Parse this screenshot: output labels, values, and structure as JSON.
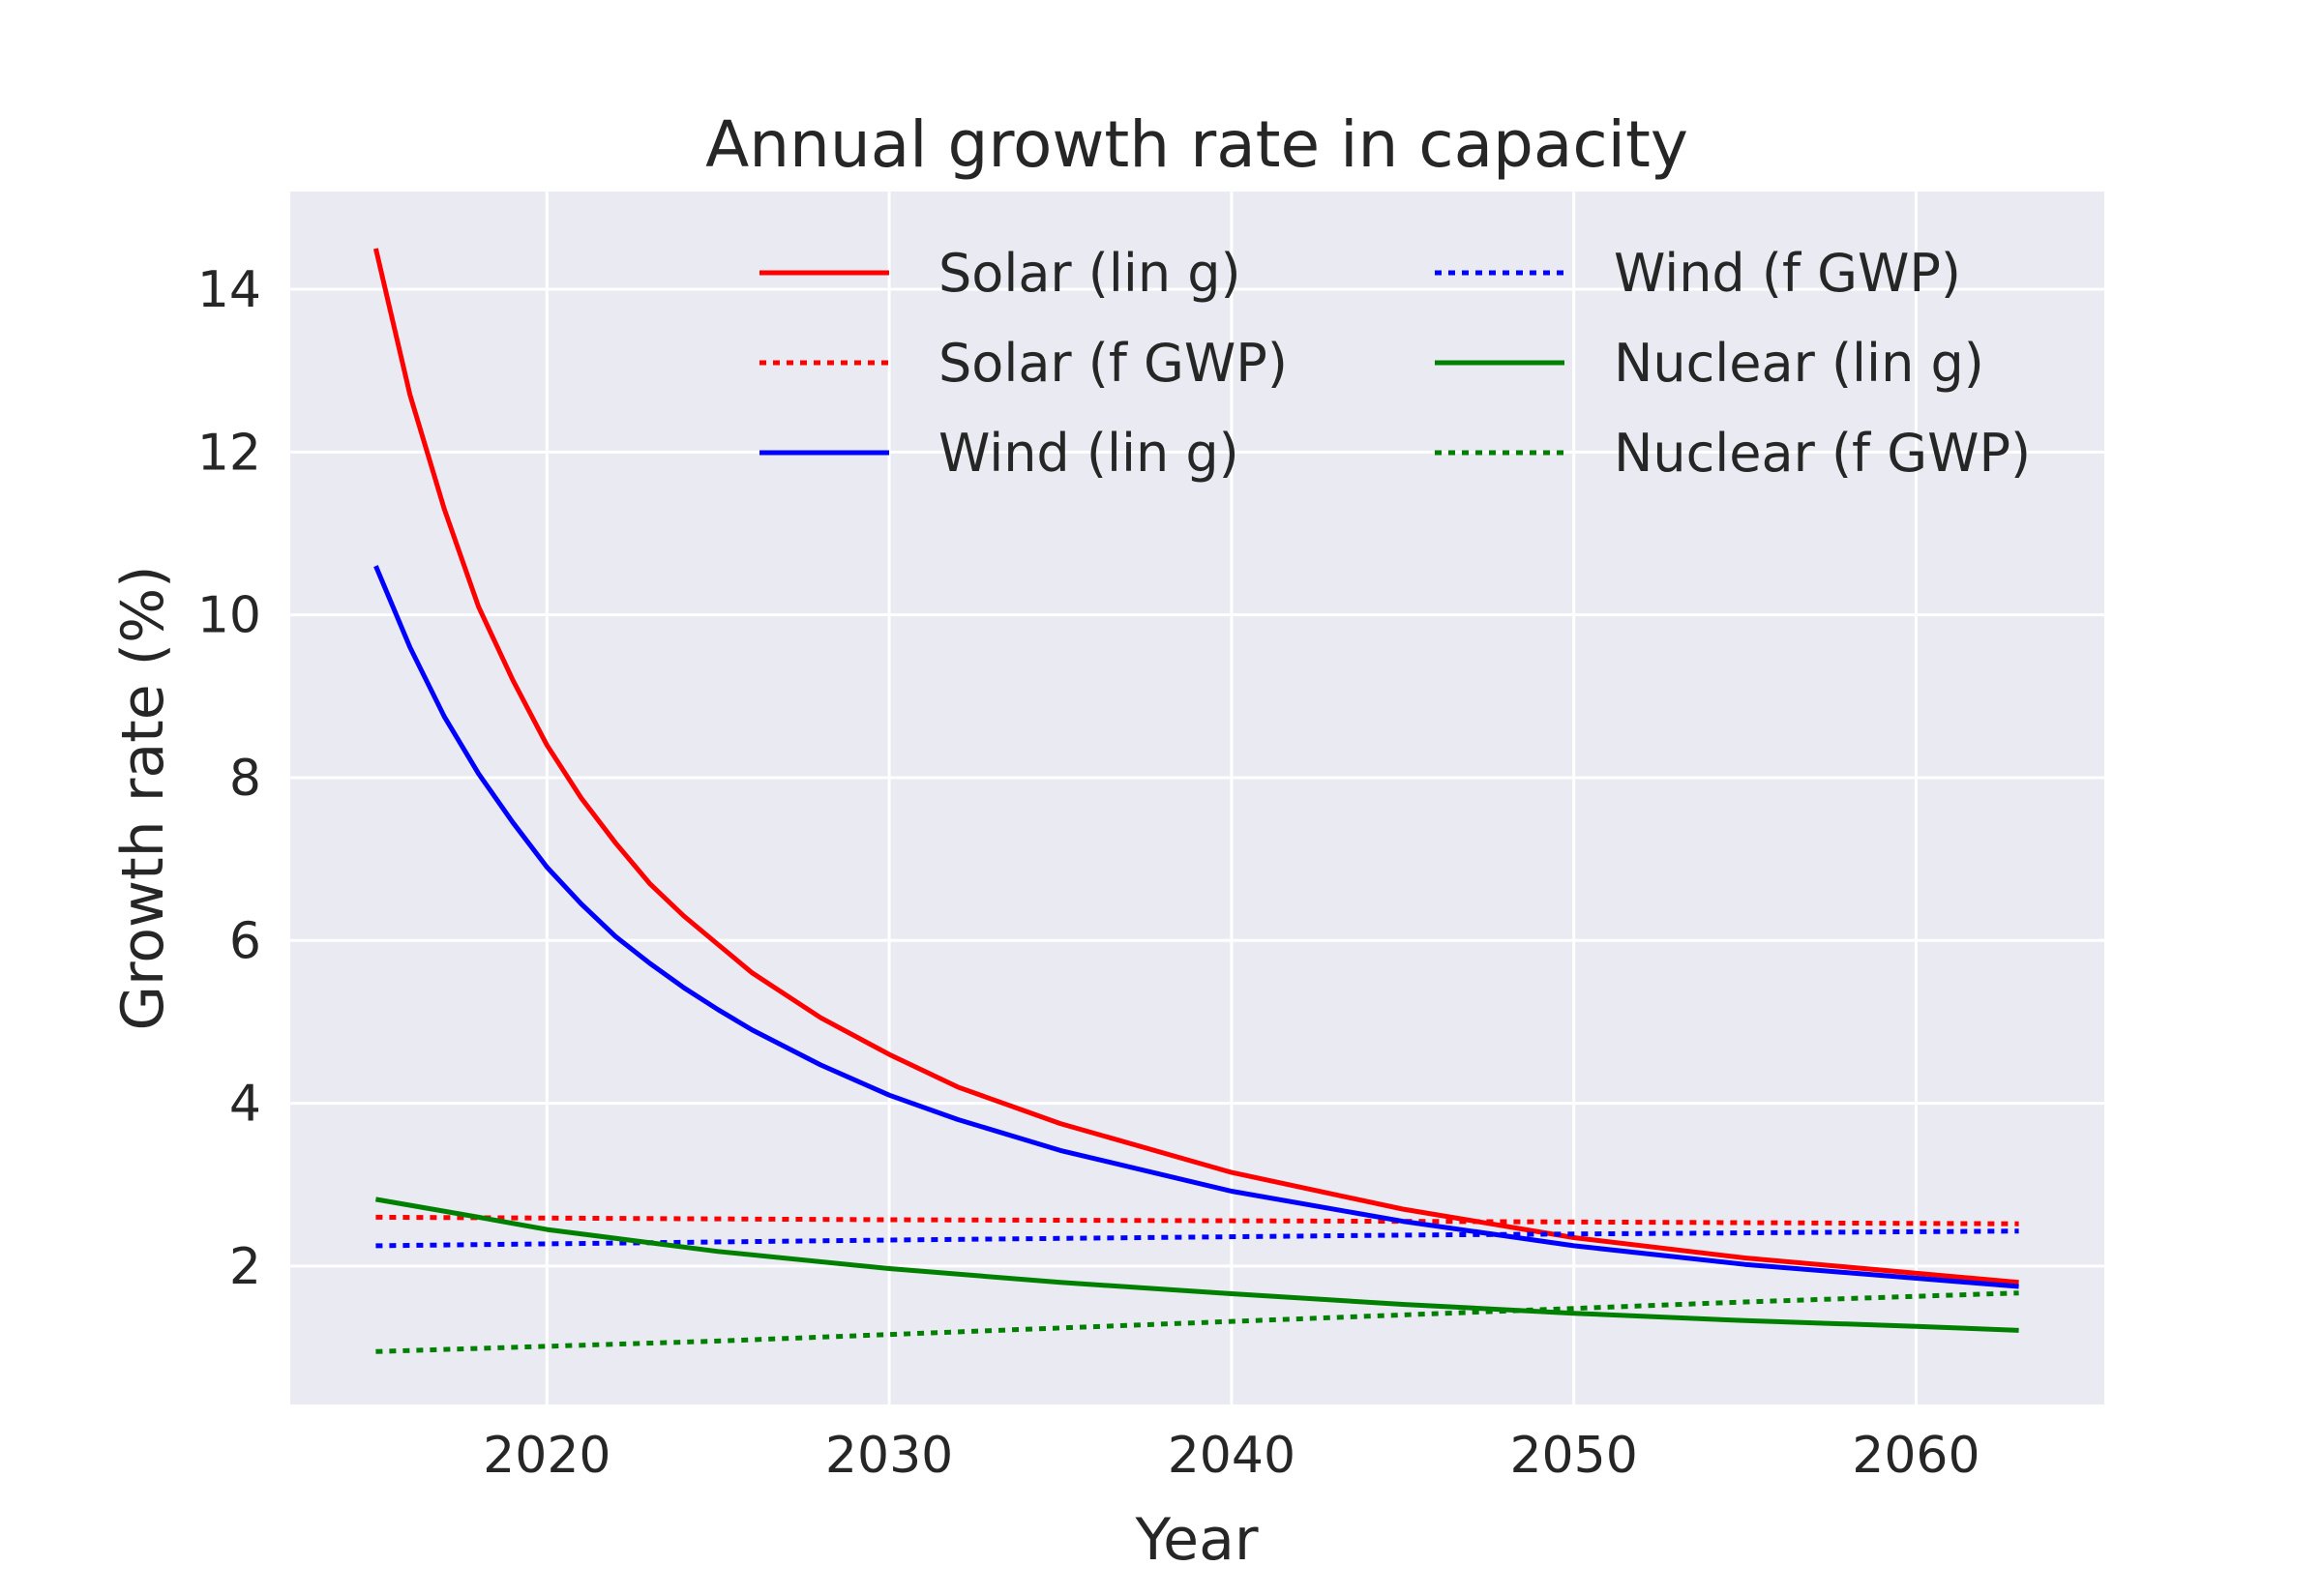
{
  "chart_data": {
    "type": "line",
    "title": "Annual growth rate in capacity",
    "xlabel": "Year",
    "ylabel": "Growth rate (%)",
    "xlim": [
      2012.5,
      2065.5
    ],
    "ylim": [
      0.3,
      15.2
    ],
    "xticks": [
      2020,
      2030,
      2040,
      2050,
      2060
    ],
    "yticks": [
      2,
      4,
      6,
      8,
      10,
      12,
      14
    ],
    "grid": true,
    "legend_position": "top-right",
    "legend_columns": 2,
    "background_color": "#eaeaf2",
    "series": [
      {
        "name": "Solar (lin g)",
        "color": "#ff0000",
        "linestyle": "solid",
        "x": [
          2015,
          2016,
          2017,
          2018,
          2019,
          2020,
          2021,
          2022,
          2023,
          2024,
          2025,
          2026,
          2028,
          2030,
          2032,
          2035,
          2040,
          2045,
          2050,
          2055,
          2063
        ],
        "y": [
          14.5,
          12.7,
          11.3,
          10.1,
          9.2,
          8.4,
          7.75,
          7.2,
          6.7,
          6.3,
          5.95,
          5.6,
          5.05,
          4.6,
          4.2,
          3.75,
          3.15,
          2.7,
          2.35,
          2.1,
          1.8
        ]
      },
      {
        "name": "Solar (f GWP)",
        "color": "#ff0000",
        "linestyle": "dotted",
        "x": [
          2015,
          2030,
          2045,
          2063
        ],
        "y": [
          2.6,
          2.57,
          2.55,
          2.52
        ]
      },
      {
        "name": "Wind (lin g)",
        "color": "#0000ff",
        "linestyle": "solid",
        "x": [
          2015,
          2016,
          2017,
          2018,
          2019,
          2020,
          2021,
          2022,
          2023,
          2024,
          2025,
          2026,
          2028,
          2030,
          2032,
          2035,
          2040,
          2045,
          2050,
          2055,
          2063
        ],
        "y": [
          10.6,
          9.6,
          8.75,
          8.05,
          7.45,
          6.9,
          6.45,
          6.05,
          5.72,
          5.42,
          5.15,
          4.9,
          4.47,
          4.1,
          3.8,
          3.42,
          2.92,
          2.55,
          2.25,
          2.02,
          1.75
        ]
      },
      {
        "name": "Wind (f GWP)",
        "color": "#0000ff",
        "linestyle": "dotted",
        "x": [
          2015,
          2030,
          2045,
          2063
        ],
        "y": [
          2.25,
          2.32,
          2.38,
          2.43
        ]
      },
      {
        "name": "Nuclear (lin g)",
        "color": "#008000",
        "linestyle": "solid",
        "x": [
          2015,
          2018,
          2020,
          2025,
          2030,
          2035,
          2040,
          2045,
          2050,
          2055,
          2060,
          2063
        ],
        "y": [
          2.82,
          2.6,
          2.45,
          2.18,
          1.97,
          1.8,
          1.66,
          1.53,
          1.42,
          1.33,
          1.26,
          1.21
        ]
      },
      {
        "name": "Nuclear (f GWP)",
        "color": "#008000",
        "linestyle": "dotted",
        "x": [
          2015,
          2025,
          2035,
          2045,
          2055,
          2063
        ],
        "y": [
          0.95,
          1.08,
          1.24,
          1.4,
          1.56,
          1.67
        ]
      }
    ]
  }
}
